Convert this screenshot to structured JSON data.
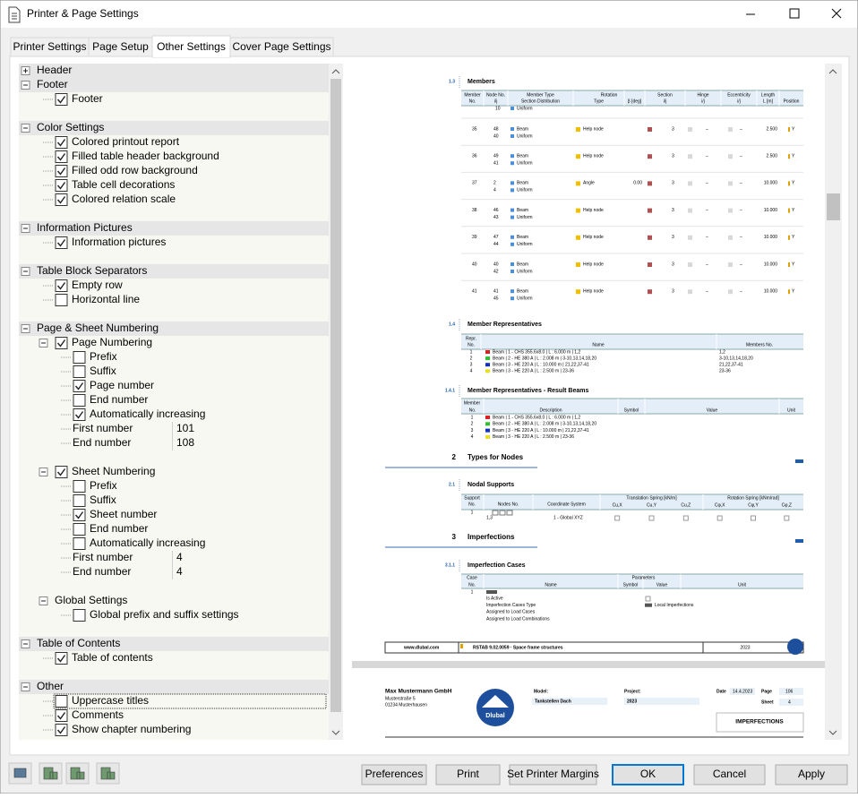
{
  "window": {
    "title": "Printer & Page Settings"
  },
  "tabs": {
    "items": [
      "Printer Settings",
      "Page Setup",
      "Other Settings",
      "Cover Page Settings"
    ],
    "selected": 2
  },
  "tree": [
    {
      "label": "Header",
      "expanded": false
    },
    {
      "label": "Footer",
      "expanded": true
    },
    {
      "label": "Footer",
      "level": 1,
      "checked": true
    },
    {
      "label": "Color Settings",
      "expanded": true
    },
    {
      "label": "Colored printout report",
      "level": 1,
      "checked": true
    },
    {
      "label": "Filled table header background",
      "level": 1,
      "checked": true
    },
    {
      "label": "Filled odd row background",
      "level": 1,
      "checked": true
    },
    {
      "label": "Table cell decorations",
      "level": 1,
      "checked": true
    },
    {
      "label": "Colored relation scale",
      "level": 1,
      "checked": true
    },
    {
      "label": "Information Pictures",
      "expanded": true
    },
    {
      "label": "Information pictures",
      "level": 1,
      "checked": true
    },
    {
      "label": "Table Block Separators",
      "expanded": true
    },
    {
      "label": "Empty row",
      "level": 1,
      "checked": true
    },
    {
      "label": "Horizontal line",
      "level": 1,
      "checked": false
    },
    {
      "label": "Page & Sheet Numbering",
      "expanded": true
    },
    {
      "label": "Page Numbering",
      "level": 1,
      "expanded": true,
      "checked": true
    },
    {
      "label": "Prefix",
      "level": 2,
      "checked": false
    },
    {
      "label": "Suffix",
      "level": 2,
      "checked": false
    },
    {
      "label": "Page number",
      "level": 2,
      "checked": true
    },
    {
      "label": "End number",
      "level": 2,
      "checked": false
    },
    {
      "label": "Automatically increasing",
      "level": 2,
      "checked": true
    },
    {
      "label": "First number",
      "level": 2,
      "value": 101
    },
    {
      "label": "End number",
      "level": 2,
      "value": 108
    },
    {
      "label": "Sheet Numbering",
      "level": 1,
      "expanded": true,
      "checked": true
    },
    {
      "label": "Prefix",
      "level": 2,
      "checked": false
    },
    {
      "label": "Suffix",
      "level": 2,
      "checked": false
    },
    {
      "label": "Sheet number",
      "level": 2,
      "checked": true
    },
    {
      "label": "End number",
      "level": 2,
      "checked": false
    },
    {
      "label": "Automatically increasing",
      "level": 2,
      "checked": false
    },
    {
      "label": "First number",
      "level": 2,
      "value": 4
    },
    {
      "label": "End number",
      "level": 2,
      "value": 4
    },
    {
      "label": "Global Settings",
      "level": 1,
      "expanded": true
    },
    {
      "label": "Global prefix and suffix settings",
      "level": 2,
      "checked": false
    },
    {
      "label": "Table of Contents",
      "expanded": true
    },
    {
      "label": "Table of contents",
      "level": 1,
      "checked": true
    },
    {
      "label": "Other",
      "expanded": true
    },
    {
      "label": "Uppercase titles",
      "level": 1,
      "checked": false,
      "focused": true
    },
    {
      "label": "Comments",
      "level": 1,
      "checked": true
    },
    {
      "label": "Show chapter numbering",
      "level": 1,
      "checked": true
    }
  ],
  "preview": {
    "members": {
      "number": "1.3",
      "title": "Members",
      "columns": [
        {
          "top": "Member",
          "bottom": "No."
        },
        {
          "top": "Node No.",
          "bottom": "i/j"
        },
        {
          "top": "Member Type",
          "bottom": "Section Distribution"
        },
        {
          "top": "Rotation",
          "bottom": "Type"
        },
        {
          "bottom": "β [deg]"
        },
        {
          "top": "Section",
          "bottom": "i/j"
        },
        {
          "top": "Hinge",
          "bottom": "i/j"
        },
        {
          "top": "Eccentricity",
          "bottom": "i/j"
        },
        {
          "top": "Length",
          "bottom": "L [m]"
        },
        {
          "bottom": "Position"
        }
      ],
      "continued": {
        "node": 10,
        "distribution": "Uniform"
      },
      "rows": [
        {
          "no": 35,
          "nodes": [
            48,
            40
          ],
          "type": "Beam",
          "distribution": "Uniform",
          "rotation": "Help node",
          "section": 3,
          "hinge": "–",
          "eccentricity": "–",
          "length": "2.500",
          "position": "Y"
        },
        {
          "no": 36,
          "nodes": [
            49,
            41
          ],
          "type": "Beam",
          "distribution": "Uniform",
          "rotation": "Help node",
          "section": 3,
          "hinge": "–",
          "eccentricity": "–",
          "length": "2.500",
          "position": "Y"
        },
        {
          "no": 37,
          "nodes": [
            2,
            4
          ],
          "type": "Beam",
          "distribution": "Uniform",
          "rotation": "Angle",
          "beta": "0.00",
          "section": 3,
          "hinge": "–",
          "eccentricity": "–",
          "length": "10.000",
          "position": "Y"
        },
        {
          "no": 38,
          "nodes": [
            46,
            43
          ],
          "type": "Beam",
          "distribution": "Uniform",
          "rotation": "Help node",
          "section": 3,
          "hinge": "–",
          "eccentricity": "–",
          "length": "10.000",
          "position": "Y"
        },
        {
          "no": 39,
          "nodes": [
            47,
            44
          ],
          "type": "Beam",
          "distribution": "Uniform",
          "rotation": "Help node",
          "section": 3,
          "hinge": "–",
          "eccentricity": "–",
          "length": "10.000",
          "position": "Y"
        },
        {
          "no": 40,
          "nodes": [
            40,
            42
          ],
          "type": "Beam",
          "distribution": "Uniform",
          "rotation": "Help node",
          "section": 3,
          "hinge": "–",
          "eccentricity": "–",
          "length": "10.000",
          "position": "Y"
        },
        {
          "no": 41,
          "nodes": [
            41,
            45
          ],
          "type": "Beam",
          "distribution": "Uniform",
          "rotation": "Help node",
          "section": 3,
          "hinge": "–",
          "eccentricity": "–",
          "length": "10.000",
          "position": "Y"
        }
      ]
    },
    "representatives": {
      "number": "1.4",
      "title": "Member Representatives",
      "columns": [
        {
          "top": "Repr.",
          "bottom": "No."
        },
        {
          "bottom": "Name"
        },
        {
          "bottom": "Members No."
        }
      ],
      "rows": [
        {
          "no": 1,
          "color": "#e02020",
          "name": "Beam | 1 - CHS 355.6x8.0 | L : 6.000 m | 1,2",
          "members": "1,2"
        },
        {
          "no": 2,
          "color": "#30c030",
          "name": "Beam | 2 - HE 380 A | L : 2.008 m | 3-10,13,14,18,20",
          "members": "3-10,13,14,18,20"
        },
        {
          "no": 3,
          "color": "#1030c0",
          "name": "Beam | 3 - HE 220 A | L : 10.000 m | 21,22,37-41",
          "members": "21,22,37-41"
        },
        {
          "no": 4,
          "color": "#e8e020",
          "name": "Beam | 3 - HE 220 A | L : 2.500 m | 23-36",
          "members": "23-36"
        }
      ]
    },
    "result_beams": {
      "number": "1.4.1",
      "title": "Member Representatives - Result Beams",
      "columns": [
        {
          "top": "Member",
          "bottom": "No."
        },
        {
          "bottom": "Description"
        },
        {
          "bottom": "Symbol"
        },
        {
          "bottom": "Value"
        },
        {
          "bottom": "Unit"
        }
      ],
      "rows": [
        {
          "no": 1,
          "color": "#e02020",
          "description": "Beam | 1 - CHS 355.6x8.0 | L : 6.000 m | 1,2"
        },
        {
          "no": 2,
          "color": "#30c030",
          "description": "Beam | 2 - HE 380 A | L : 2.008 m | 3-10,13,14,18,20"
        },
        {
          "no": 3,
          "color": "#1030c0",
          "description": "Beam | 3 - HE 220 A | L : 10.000 m | 21,22,37-41"
        },
        {
          "no": 4,
          "color": "#e8e020",
          "description": "Beam | 3 - HE 220 A | L : 2.500 m | 23-36"
        }
      ]
    },
    "types_for_nodes": {
      "number": "2",
      "title": "Types for Nodes"
    },
    "nodal_supports": {
      "number": "2.1",
      "title": "Nodal Supports",
      "columns": [
        {
          "top": "Support",
          "bottom": "No."
        },
        {
          "bottom": "Nodes No."
        },
        {
          "bottom": "Coordinate System"
        },
        {
          "top": "Translation Spring [kN/m]",
          "sub": [
            "Cu,X",
            "Cu,Y",
            "Cu,Z"
          ]
        },
        {
          "top": "Rotation Spring [kNm/rad]",
          "sub": [
            "Cφ,X",
            "Cφ,Y",
            "Cφ,Z"
          ]
        }
      ],
      "rows": [
        {
          "no": 1,
          "nodes": "1,3",
          "system": "1 - Global XYZ"
        }
      ]
    },
    "imperfections": {
      "number": "3",
      "title": "Imperfections"
    },
    "imperfection_cases": {
      "number": "3.1.1",
      "title": "Imperfection Cases",
      "columns": [
        {
          "top": "Case",
          "bottom": "No."
        },
        {
          "top": "Parameters"
        },
        {
          "bottom": "Name"
        },
        {
          "bottom": "Symbol"
        },
        {
          "bottom": "Value"
        },
        {
          "bottom": "Unit"
        }
      ],
      "rows": [
        {
          "no": 1,
          "parameters": [
            {
              "name": "Is Active"
            },
            {
              "name": "Imperfection Cases Type",
              "value": "Local Imperfections"
            },
            {
              "name": "Assigned to Load Cases"
            },
            {
              "name": "Assigned to Load Combinations"
            }
          ]
        }
      ]
    },
    "footer": {
      "website": "www.dlubal.com",
      "software": "RSTAB 9.02.0059 · Space frame structures",
      "year": "2023"
    },
    "cover": {
      "company": "Max Mustermann GmbH",
      "street": "Musterstraße 5",
      "city": "01234 Musterhausen",
      "logo": "Dlubal",
      "model_label": "Model:",
      "model": "Tankstellen Dach",
      "project_label": "Project:",
      "project": "2023",
      "date_label": "Date",
      "date": "14.4.2023",
      "page_label": "Page",
      "page": 106,
      "sheet_label": "Sheet",
      "sheet": 4,
      "chapter": "IMPERFECTIONS"
    }
  },
  "buttons": {
    "items": [
      "Preferences",
      "Print",
      "Set Printer Margins",
      "OK",
      "Cancel",
      "Apply"
    ],
    "default": 3
  }
}
